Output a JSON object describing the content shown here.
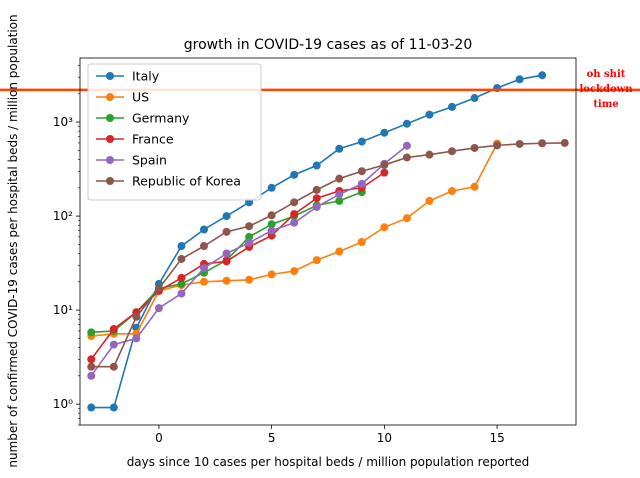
{
  "chart_data": {
    "type": "line",
    "title": "growth in COVID-19 cases as of 11-03-20",
    "xlabel": "days since 10 cases per hospital beds / million population reported",
    "ylabel": "number of confirmed COVID-19 cases per hospital beds / million population",
    "yscale": "log",
    "xlim": [
      -3.5,
      18.5
    ],
    "ylim": [
      0.6,
      4800
    ],
    "xticks": [
      0,
      5,
      10,
      15
    ],
    "yticks": [
      {
        "value": 1,
        "label": "10⁰"
      },
      {
        "value": 10,
        "label": "10¹"
      },
      {
        "value": 100,
        "label": "10²"
      },
      {
        "value": 1000,
        "label": "10³"
      }
    ],
    "legend_position": "top-left",
    "hline": {
      "y": 2200,
      "color": "#ff4500",
      "label_lines": [
        "oh shit",
        "lockdown",
        "time"
      ]
    },
    "series": [
      {
        "name": "Italy",
        "color": "#1f77b4",
        "x": [
          -3,
          -2,
          -1,
          0,
          1,
          2,
          3,
          4,
          5,
          6,
          7,
          8,
          9,
          10,
          11,
          12,
          13,
          14,
          15,
          16,
          17
        ],
        "y": [
          0.92,
          0.92,
          6.5,
          19,
          48,
          72,
          100,
          140,
          200,
          275,
          345,
          520,
          620,
          770,
          960,
          1200,
          1450,
          1800,
          2300,
          2850,
          3150
        ]
      },
      {
        "name": "US",
        "color": "#ff7f0e",
        "x": [
          -3,
          -2,
          -1,
          0,
          1,
          2,
          3,
          4,
          5,
          6,
          7,
          8,
          9,
          10,
          11,
          12,
          13,
          14,
          15
        ],
        "y": [
          5.3,
          5.6,
          5.6,
          16,
          18.5,
          20,
          20.5,
          21,
          24,
          26,
          34,
          42,
          53,
          76,
          95,
          145,
          185,
          205,
          590
        ]
      },
      {
        "name": "Germany",
        "color": "#2ca02c",
        "x": [
          -3,
          -2,
          -1,
          0,
          1,
          2,
          3,
          4,
          5,
          6,
          7,
          8,
          9
        ],
        "y": [
          5.8,
          6.0,
          9.5,
          17,
          19,
          25,
          34,
          60,
          82,
          100,
          130,
          145,
          180
        ]
      },
      {
        "name": "France",
        "color": "#d62728",
        "x": [
          -3,
          -2,
          -1,
          0,
          1,
          2,
          3,
          4,
          5,
          6,
          7,
          8,
          9,
          10
        ],
        "y": [
          3.0,
          6.3,
          9.5,
          16,
          22,
          31,
          33,
          47,
          62,
          105,
          155,
          185,
          200,
          290
        ]
      },
      {
        "name": "Spain",
        "color": "#9467bd",
        "x": [
          -3,
          -2,
          -1,
          0,
          1,
          2,
          3,
          4,
          5,
          6,
          7,
          8,
          9,
          10,
          11
        ],
        "y": [
          2.0,
          4.3,
          5.0,
          10.5,
          15,
          28,
          40,
          52,
          70,
          85,
          125,
          170,
          220,
          360,
          560
        ]
      },
      {
        "name": "Republic of Korea",
        "color": "#8c564b",
        "x": [
          -3,
          -2,
          -1,
          0,
          1,
          2,
          3,
          4,
          5,
          6,
          7,
          8,
          9,
          10,
          11,
          12,
          13,
          14,
          15,
          16,
          17,
          18
        ],
        "y": [
          2.5,
          2.5,
          8.5,
          17,
          35,
          48,
          68,
          78,
          102,
          140,
          190,
          250,
          300,
          350,
          420,
          450,
          490,
          530,
          565,
          585,
          595,
          600
        ]
      }
    ]
  }
}
